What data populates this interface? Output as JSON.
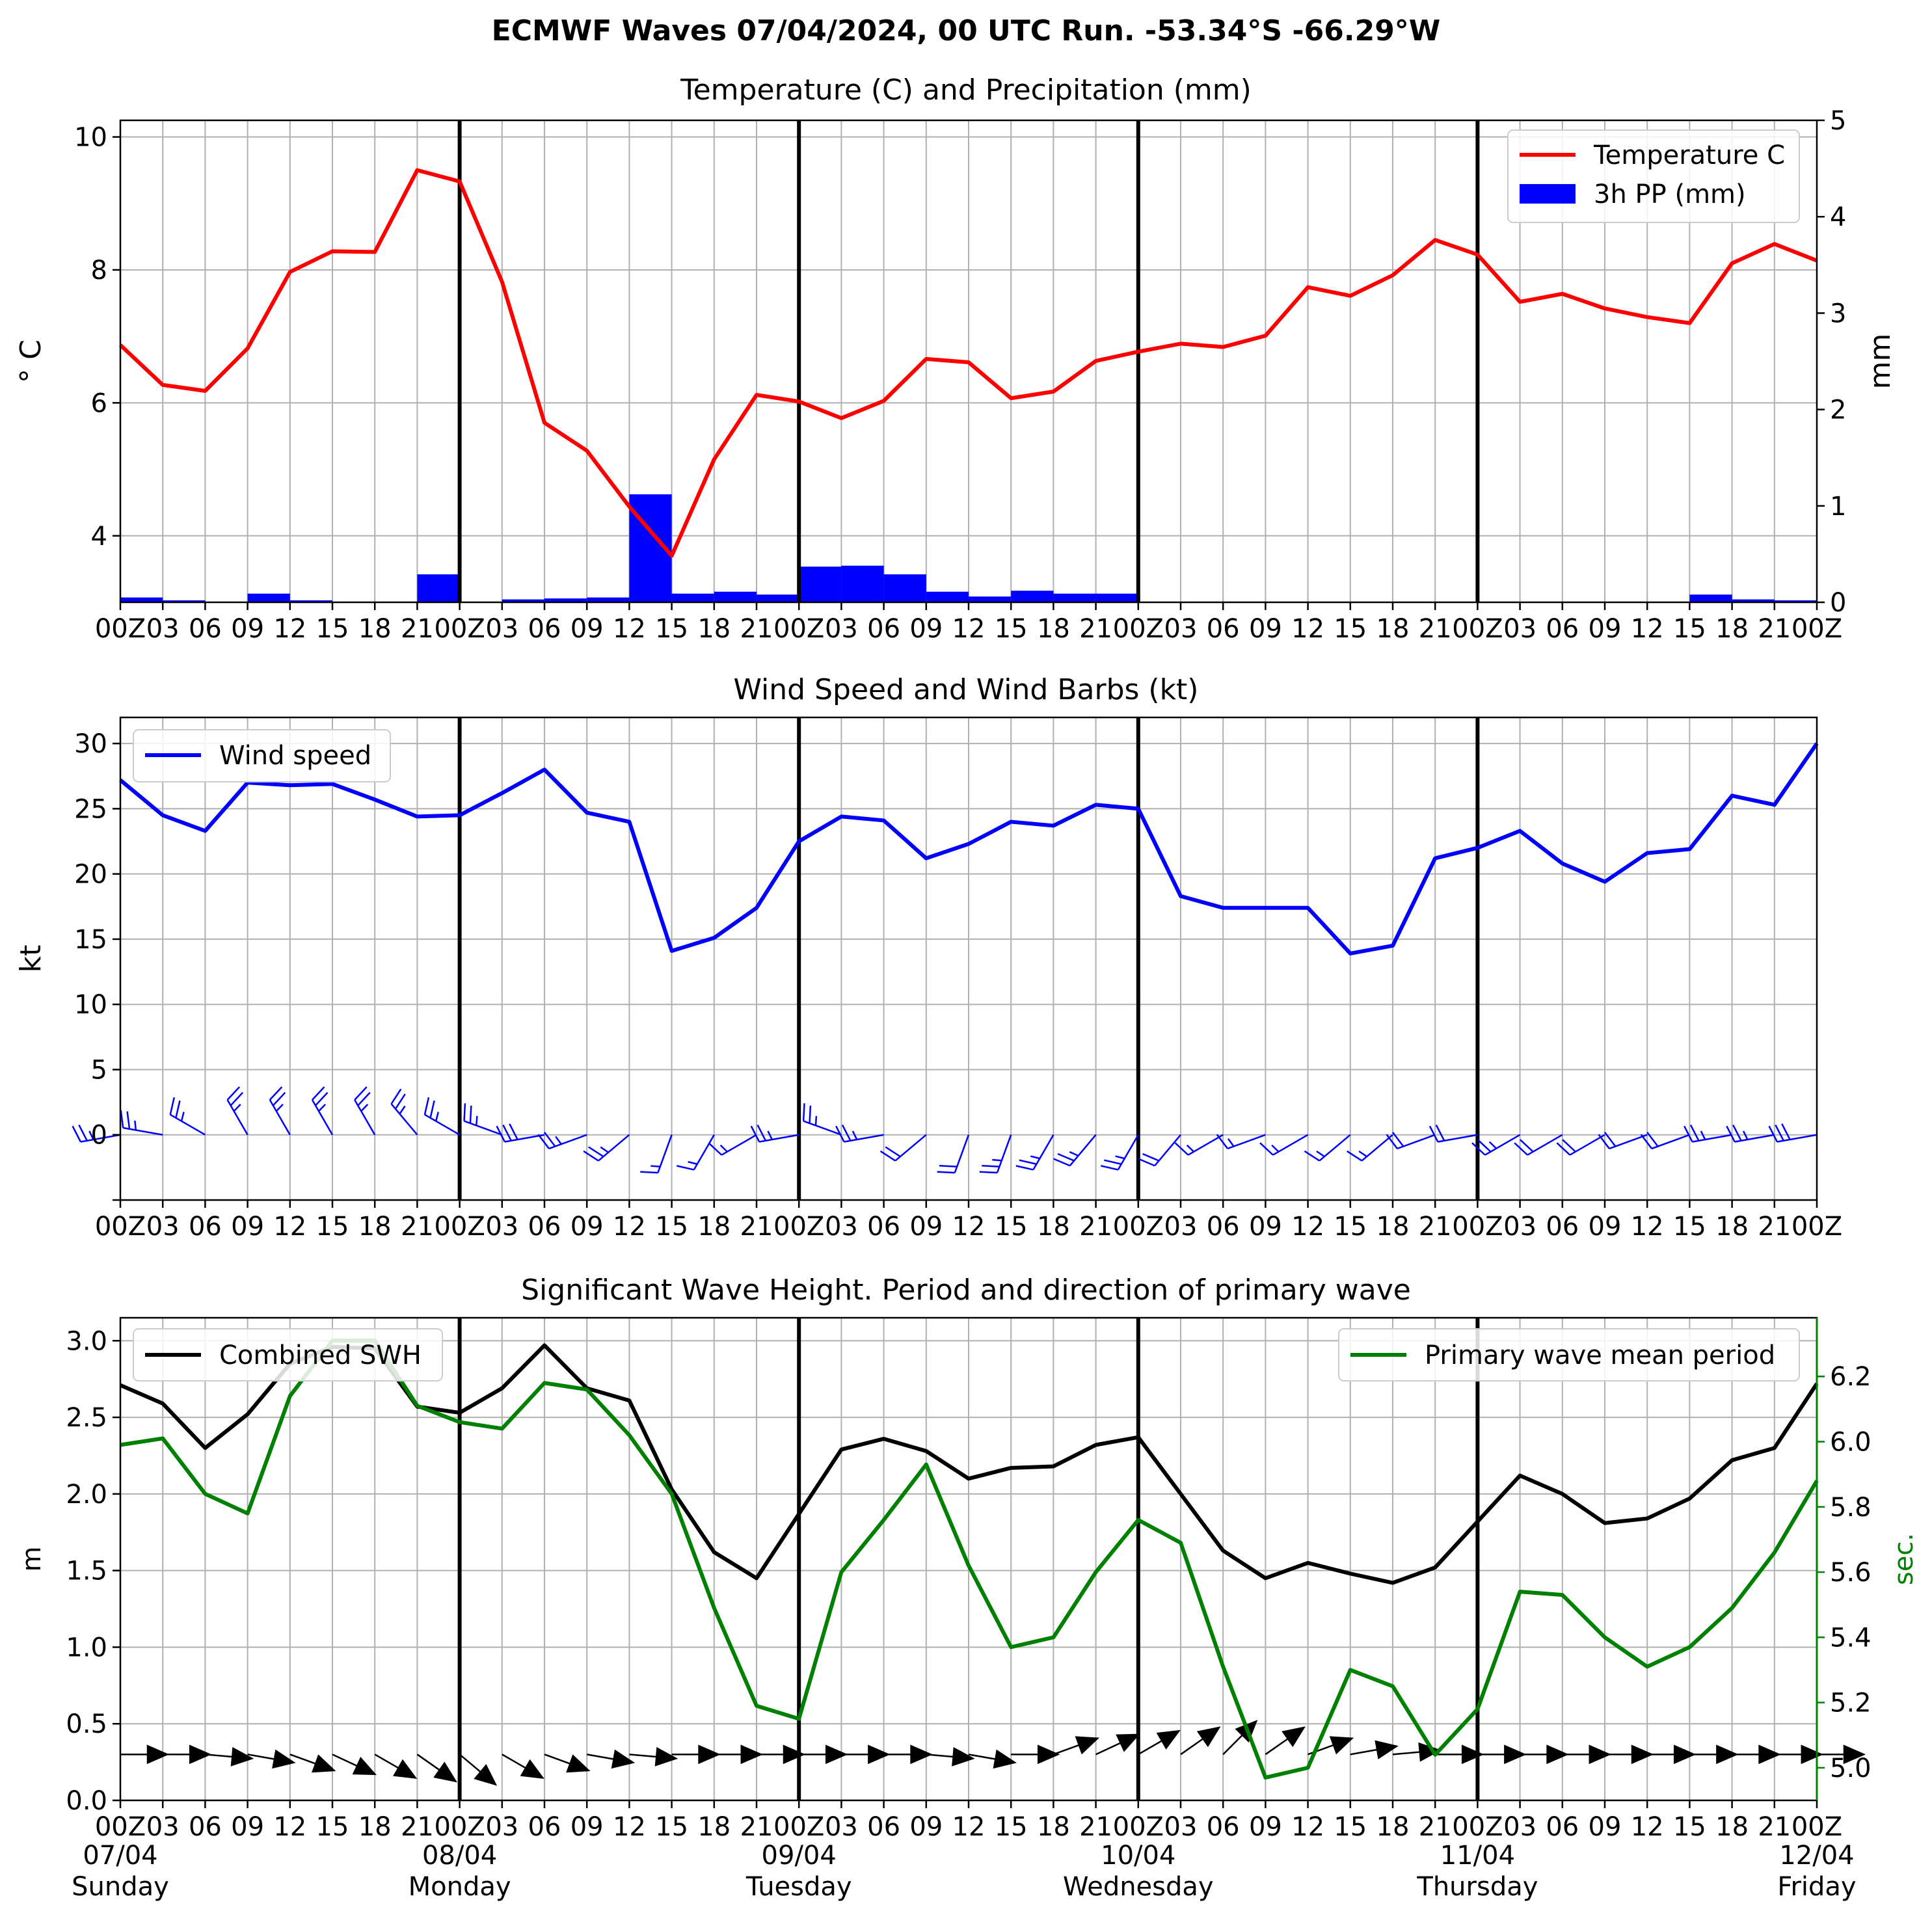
{
  "suptitle": "ECMWF Waves 07/04/2024, 00 UTC Run. -53.34°S -66.29°W",
  "colors": {
    "temp": "#ff0000",
    "precip": "#0000ff",
    "wind": "#0000ff",
    "swh": "#000000",
    "period": "#008000",
    "grid": "#b0b0b0",
    "arrow": "#000000"
  },
  "x_hour_labels": [
    "00Z",
    "03",
    "06",
    "09",
    "12",
    "15",
    "18",
    "21",
    "00Z",
    "03",
    "06",
    "09",
    "12",
    "15",
    "18",
    "21",
    "00Z",
    "03",
    "06",
    "09",
    "12",
    "15",
    "18",
    "21",
    "00Z",
    "03",
    "06",
    "09",
    "12",
    "15",
    "18",
    "21",
    "00Z",
    "03",
    "06",
    "09",
    "12",
    "15",
    "18",
    "21",
    "00Z"
  ],
  "date_labels": [
    {
      "date": "07/04",
      "day": "Sunday"
    },
    {
      "date": "08/04",
      "day": "Monday"
    },
    {
      "date": "09/04",
      "day": "Tuesday"
    },
    {
      "date": "10/04",
      "day": "Wednesday"
    },
    {
      "date": "11/04",
      "day": "Thursday"
    },
    {
      "date": "12/04",
      "day": "Friday"
    }
  ],
  "chart_data": [
    {
      "type": "line",
      "title": "Temperature (C) and Precipitation (mm)",
      "ylabel": "$^\\circ$C",
      "ylabel_right": "mm",
      "ylim": [
        3.0,
        10.25
      ],
      "ylim_right": [
        0,
        5
      ],
      "yticks": [
        4,
        6,
        8,
        10
      ],
      "yticks_right": [
        0,
        1,
        2,
        3,
        4,
        5
      ],
      "legend_position": "upper-right",
      "series": [
        {
          "name": "Temperature C",
          "kind": "line",
          "axis": "left",
          "values": [
            6.87,
            6.27,
            6.18,
            6.82,
            7.97,
            8.28,
            8.27,
            9.5,
            9.33,
            7.82,
            5.7,
            5.28,
            4.44,
            3.7,
            5.15,
            6.12,
            6.02,
            5.77,
            6.03,
            6.66,
            6.61,
            6.07,
            6.17,
            6.63,
            6.77,
            6.89,
            6.84,
            7.01,
            7.74,
            7.61,
            7.92,
            8.45,
            8.23,
            7.52,
            7.64,
            7.42,
            7.29,
            7.2,
            8.1,
            8.39,
            8.14
          ]
        },
        {
          "name": "3h PP (mm)",
          "kind": "bar",
          "axis": "right",
          "values": [
            0.05,
            0.02,
            0,
            0.09,
            0.02,
            0,
            0,
            0.29,
            0,
            0.03,
            0.04,
            0.05,
            1.12,
            0.09,
            0.11,
            0.08,
            0.37,
            0.38,
            0.29,
            0.11,
            0.06,
            0.12,
            0.09,
            0.09,
            0,
            0,
            0,
            0,
            0,
            0,
            0,
            0,
            0,
            0,
            0,
            0,
            0,
            0.08,
            0.03,
            0.02
          ]
        }
      ]
    },
    {
      "type": "line",
      "title": "Wind Speed and Wind Barbs (kt)",
      "ylabel": "kt",
      "ylim": [
        -5,
        32
      ],
      "yticks": [
        0,
        5,
        10,
        15,
        20,
        25,
        30
      ],
      "legend_position": "upper-left",
      "series": [
        {
          "name": "Wind speed",
          "kind": "line",
          "values": [
            27.2,
            24.5,
            23.3,
            27.0,
            26.8,
            26.9,
            25.7,
            24.4,
            24.5,
            26.2,
            28.0,
            24.7,
            24.0,
            14.1,
            15.1,
            17.4,
            22.5,
            24.4,
            24.1,
            21.2,
            22.3,
            24.0,
            23.7,
            25.3,
            25.0,
            18.3,
            17.4,
            17.4,
            17.4,
            13.9,
            14.5,
            21.2,
            22.0,
            23.3,
            20.8,
            19.4,
            21.6,
            21.9,
            26.0,
            25.3,
            30.0
          ]
        },
        {
          "name": "wind-barb-direction-deg",
          "kind": "barbs",
          "values": [
            260,
            280,
            300,
            330,
            330,
            330,
            330,
            320,
            300,
            290,
            260,
            250,
            230,
            200,
            210,
            240,
            260,
            290,
            260,
            230,
            200,
            200,
            210,
            220,
            210,
            220,
            240,
            250,
            240,
            230,
            230,
            250,
            260,
            240,
            240,
            240,
            250,
            250,
            260,
            260,
            260
          ]
        }
      ]
    },
    {
      "type": "line",
      "title": "Significant Wave Height. Period and direction of primary wave",
      "ylabel": "m",
      "ylabel_right": "sec.",
      "ylim": [
        0.0,
        3.15
      ],
      "ylim_right": [
        4.9,
        6.38
      ],
      "yticks": [
        0.0,
        0.5,
        1.0,
        1.5,
        2.0,
        2.5,
        3.0
      ],
      "yticks_right": [
        5.0,
        5.2,
        5.4,
        5.6,
        5.8,
        6.0,
        6.2
      ],
      "series": [
        {
          "name": "Combined SWH",
          "kind": "line",
          "axis": "left",
          "values": [
            2.71,
            2.59,
            2.3,
            2.52,
            2.85,
            2.96,
            2.95,
            2.57,
            2.53,
            2.69,
            2.97,
            2.69,
            2.61,
            2.03,
            1.62,
            1.45,
            1.87,
            2.29,
            2.36,
            2.28,
            2.1,
            2.17,
            2.18,
            2.32,
            2.37,
            2.0,
            1.63,
            1.45,
            1.55,
            1.48,
            1.42,
            1.52,
            1.82,
            2.12,
            2.0,
            1.81,
            1.84,
            1.97,
            2.22,
            2.3,
            2.72
          ]
        },
        {
          "name": "Primary wave mean period",
          "kind": "line",
          "axis": "right",
          "values": [
            5.99,
            6.01,
            5.84,
            5.78,
            6.14,
            6.31,
            6.31,
            6.11,
            6.06,
            6.04,
            6.18,
            6.16,
            6.02,
            5.84,
            5.49,
            5.19,
            5.15,
            5.6,
            5.76,
            5.93,
            5.62,
            5.37,
            5.4,
            5.6,
            5.76,
            5.69,
            5.31,
            4.97,
            5.0,
            5.3,
            5.25,
            5.04,
            5.18,
            5.54,
            5.53,
            5.4,
            5.31,
            5.37,
            5.49,
            5.66,
            5.88
          ]
        },
        {
          "name": "primary-wave-direction-deg",
          "kind": "arrows",
          "values": [
            90,
            90,
            95,
            100,
            110,
            115,
            120,
            125,
            130,
            120,
            110,
            100,
            95,
            90,
            90,
            90,
            90,
            90,
            90,
            95,
            100,
            90,
            70,
            65,
            60,
            55,
            45,
            55,
            70,
            80,
            85,
            90,
            90,
            90,
            90,
            90,
            90,
            90,
            90,
            90,
            90
          ]
        }
      ],
      "legend_position": "split"
    }
  ]
}
